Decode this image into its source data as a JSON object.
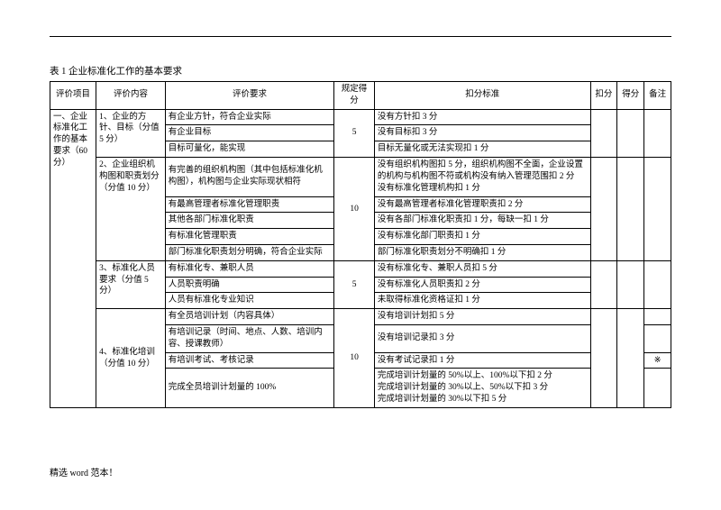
{
  "caption": "表 1    企业标准化工作的基本要求",
  "header": {
    "eval_project": "评价项目",
    "eval_content": "评价内容",
    "eval_req": "评价要求",
    "full_score": "规定得分",
    "deduct_std": "扣分标准",
    "deduct": "扣分",
    "score": "得分",
    "remark": "备注"
  },
  "col0": "一、企业标准化工作的基本要求（60 分）",
  "g1": {
    "title": "1、企业的方针、目标（分值 5 分）",
    "score": "5",
    "r1": "有企业方针，符合企业实际",
    "d1": "没有方针扣 3 分",
    "r2": "有企业目标",
    "d2": "没有目标扣 3 分",
    "r3": "目标可量化，能实现",
    "d3": "目标无量化或无法实现扣 1 分"
  },
  "g2": {
    "title": "2、企业组织机构图和职责划分（分值 10 分）",
    "score": "10",
    "r1": "有完善的组织机构图（其中包括标准化机构图），机构图与企业实际现状相符",
    "d1": "没有组织机构图扣 5 分，组织机构图不全面，企业设置的机构与机构图不符或机构没有纳入管理范围扣 2 分\n没有标准化管理机构扣 1 分",
    "r2": "有最高管理者标准化管理职责",
    "d2": "没有最高管理者标准化管理职责扣 2 分",
    "r3": "其他各部门标准化职责",
    "d3": "没有各部门标准化职责扣 1 分，每缺一扣 1 分",
    "r4": "有标准化管理职责",
    "d4": "没有标准化部门职责扣 1 分",
    "r5": "部门标准化职责划分明确，符合企业实际",
    "d5": "部门标准化职责划分不明确扣 1 分"
  },
  "g3": {
    "title": "3、标准化人员要求（分值 5 分）",
    "score": "5",
    "r1": "有标准化专、兼职人员",
    "d1": "没有标准化专、兼职人员扣 5 分",
    "r2": "人员职责明确",
    "d2": "没有标准化人员职责扣 2 分",
    "r3": "人员有标准化专业知识",
    "d3": "未取得标准化资格证扣 1 分"
  },
  "g4": {
    "title": "4、标准化培训（分值 10 分）",
    "score": "10",
    "r1": "有全员培训计划（内容具体）",
    "d1": "没有培训计划扣 5 分",
    "r2": "有培训记录（时间、地点、人数、培训内容、授课教师）",
    "d2": "没有培训记录扣 3 分",
    "r3": "有培训考试、考核记录",
    "d3": "没有考试记录扣 1 分",
    "r4": "完成全员培训计划量的 100%",
    "d4": "完成培训计划量的 50%以上、100%以下扣 2 分\n完成培训计划量的 30%以上、50%以下扣 3 分\n完成培训计划量的 30%以下扣 5 分",
    "remark4": "※"
  },
  "footer": "精选 word 范本！"
}
